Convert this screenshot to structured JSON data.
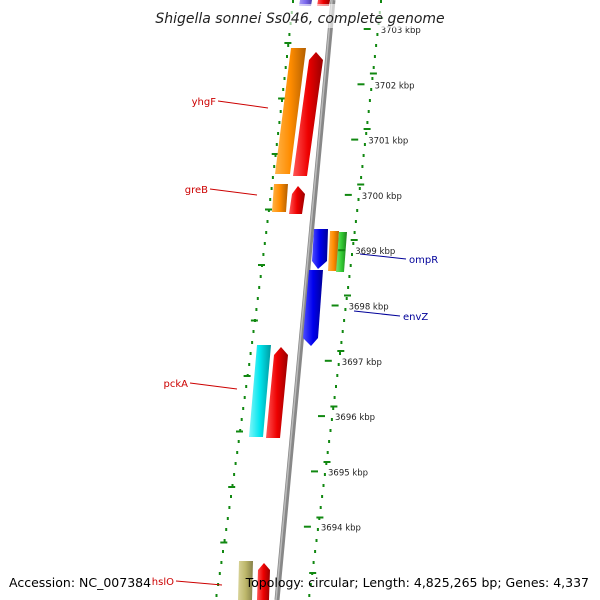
{
  "title": "Shigella sonnei Ss046, complete genome",
  "footer": {
    "accession": "Accession: NC_007384",
    "info": "Topology: circular; Length: 4,825,265 bp; Genes: 4,337"
  },
  "scale_labels": [
    "3703 kbp",
    "3702 kbp",
    "3701 kbp",
    "3700 kbp",
    "3699 kbp",
    "3698 kbp",
    "3697 kbp",
    "3696 kbp",
    "3695 kbp",
    "3694 kbp"
  ],
  "genes": [
    {
      "name": "yhgF",
      "strand": "left"
    },
    {
      "name": "greB",
      "strand": "left"
    },
    {
      "name": "ompR",
      "strand": "right"
    },
    {
      "name": "envZ",
      "strand": "right"
    },
    {
      "name": "pckA",
      "strand": "left"
    },
    {
      "name": "hslO",
      "strand": "left"
    }
  ],
  "colors": {
    "gene_label_left": "#cc0000",
    "gene_label_right": "#000099",
    "backbone": "#888888",
    "ticks": "#118811",
    "orange": "#ff8c00",
    "red": "#ee0000",
    "blue": "#0000ee",
    "green": "#33cc33",
    "cyan": "#00e5ee",
    "khaki": "#bdb76b",
    "purple": "#7b68ee"
  }
}
